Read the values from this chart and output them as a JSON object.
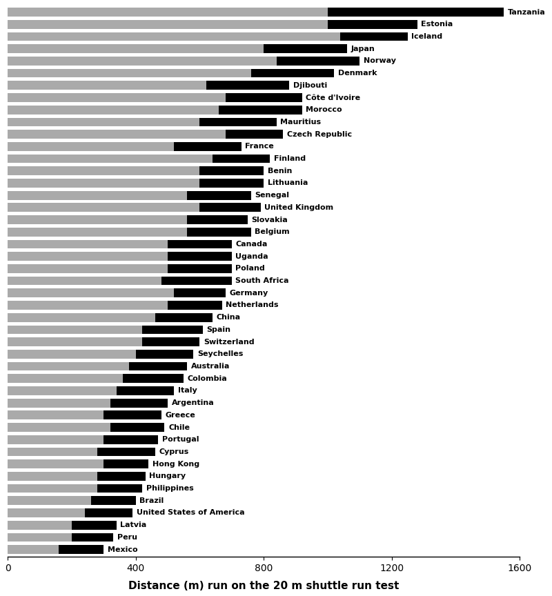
{
  "countries": [
    "Tanzania",
    "Estonia",
    "Iceland",
    "Japan",
    "Norway",
    "Denmark",
    "Djibouti",
    "Côte d'Ivoire",
    "Morocco",
    "Mauritius",
    "Czech Republic",
    "France",
    "Finland",
    "Benin",
    "Lithuania",
    "Senegal",
    "United Kingdom",
    "Slovakia",
    "Belgium",
    "Canada",
    "Uganda",
    "Poland",
    "South Africa",
    "Germany",
    "Netherlands",
    "China",
    "Spain",
    "Switzerland",
    "Seychelles",
    "Australia",
    "Colombia",
    "Italy",
    "Argentina",
    "Greece",
    "Chile",
    "Portugal",
    "Cyprus",
    "Hong Kong",
    "Hungary",
    "Philippines",
    "Brazil",
    "United States of America",
    "Latvia",
    "Peru",
    "Mexico"
  ],
  "gray_values": [
    1000,
    1000,
    1040,
    800,
    840,
    760,
    620,
    680,
    660,
    600,
    680,
    520,
    640,
    600,
    600,
    560,
    600,
    560,
    560,
    500,
    500,
    500,
    480,
    520,
    500,
    460,
    420,
    420,
    400,
    380,
    360,
    340,
    320,
    300,
    320,
    300,
    280,
    300,
    280,
    280,
    260,
    240,
    200,
    200,
    160
  ],
  "black_values": [
    550,
    280,
    210,
    260,
    260,
    260,
    260,
    240,
    260,
    240,
    180,
    210,
    180,
    200,
    200,
    200,
    190,
    190,
    200,
    200,
    200,
    200,
    220,
    160,
    170,
    180,
    190,
    180,
    180,
    180,
    190,
    180,
    180,
    180,
    170,
    170,
    180,
    140,
    150,
    140,
    140,
    150,
    140,
    130,
    140
  ],
  "xlim": [
    0,
    1600
  ],
  "xticks": [
    0,
    400,
    800,
    1200,
    1600
  ],
  "xlabel": "Distance (m) run on the 20 m shuttle run test",
  "bar_height": 0.72,
  "gray_color": "#aaaaaa",
  "black_color": "#000000",
  "background_color": "#ffffff",
  "label_fontsize": 8.0,
  "axis_fontsize": 11,
  "figsize": [
    8.0,
    8.64
  ],
  "dpi": 100
}
